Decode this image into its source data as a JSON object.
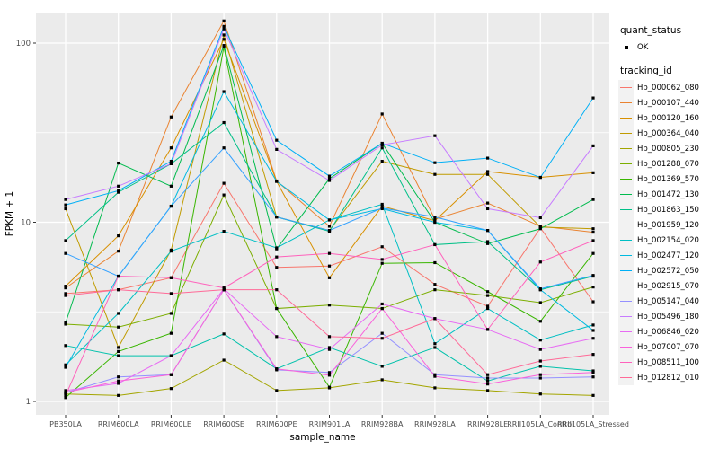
{
  "chart_data": {
    "type": "line",
    "title": "",
    "xlabel": "sample_name",
    "ylabel": "FPKM + 1",
    "y_scale": "log10",
    "y_ticks": [
      1,
      10,
      100
    ],
    "y_minor_ticks": [
      3.162,
      31.62
    ],
    "ylim": [
      0.85,
      160
    ],
    "grid": "on",
    "panel_bg": "#EBEBEB",
    "grid_color": "#FFFFFF",
    "point_color": "#000000",
    "legend_position": "right",
    "categories": [
      "PB350LA",
      "RRIM600LA",
      "RRIM600LE",
      "RRIM600SE",
      "RRIM600PE",
      "RRIM901LA",
      "RRIM928BA",
      "RRIM928LA",
      "RRIM928LE",
      "RRII105LA_Control",
      "RRII105LA_Stressed"
    ],
    "series": [
      {
        "name": "Hb_000062_080",
        "color": "#F8766D",
        "values": [
          4.0,
          4.2,
          4.9,
          16.5,
          5.6,
          5.7,
          7.3,
          4.5,
          3.4,
          9.3,
          3.6
        ]
      },
      {
        "name": "Hb_000107_440",
        "color": "#EA8331",
        "values": [
          4.3,
          6.9,
          38.7,
          133,
          17.0,
          9.5,
          40.2,
          10.4,
          12.8,
          9.5,
          8.8
        ]
      },
      {
        "name": "Hb_000120_160",
        "color": "#D89000",
        "values": [
          4.4,
          8.4,
          26.0,
          105,
          16.9,
          4.9,
          12.3,
          10.2,
          19.2,
          17.8,
          18.9
        ]
      },
      {
        "name": "Hb_000364_040",
        "color": "#C09B00",
        "values": [
          11.9,
          2.0,
          7.0,
          111,
          10.7,
          9.0,
          21.9,
          18.5,
          18.5,
          9.4,
          9.2
        ]
      },
      {
        "name": "Hb_000805_230",
        "color": "#A3A500",
        "values": [
          1.1,
          1.08,
          1.18,
          1.7,
          1.15,
          1.19,
          1.32,
          1.19,
          1.15,
          1.1,
          1.08
        ]
      },
      {
        "name": "Hb_001288_070",
        "color": "#7CAE00",
        "values": [
          2.7,
          2.6,
          3.1,
          14.2,
          3.3,
          3.45,
          3.3,
          4.2,
          3.9,
          3.56,
          4.35
        ]
      },
      {
        "name": "Hb_001369_570",
        "color": "#39B600",
        "values": [
          1.05,
          1.9,
          2.4,
          95,
          3.3,
          1.2,
          5.9,
          5.95,
          4.1,
          2.8,
          6.7
        ]
      },
      {
        "name": "Hb_001472_130",
        "color": "#00BB4E",
        "values": [
          2.75,
          21.4,
          15.9,
          97,
          7.1,
          17.5,
          27.6,
          10.0,
          7.6,
          9.2,
          13.4
        ]
      },
      {
        "name": "Hb_001863_150",
        "color": "#00C087",
        "values": [
          7.9,
          14.7,
          21.2,
          36,
          10.7,
          8.9,
          26.0,
          7.5,
          7.8,
          4.2,
          5.0
        ]
      },
      {
        "name": "Hb_001959_120",
        "color": "#00C1AB",
        "values": [
          2.05,
          1.8,
          1.8,
          2.38,
          1.52,
          2.0,
          1.57,
          2.0,
          1.3,
          1.57,
          1.48
        ]
      },
      {
        "name": "Hb_002154_020",
        "color": "#00BFC4",
        "values": [
          1.6,
          3.1,
          6.9,
          8.9,
          7.2,
          10.3,
          12.6,
          2.1,
          3.3,
          2.2,
          2.67
        ]
      },
      {
        "name": "Hb_002477_120",
        "color": "#00BAE0",
        "values": [
          1.55,
          5.0,
          12.3,
          53.6,
          16.9,
          10.3,
          11.9,
          10.0,
          9.0,
          4.2,
          2.49
        ]
      },
      {
        "name": "Hb_002572_050",
        "color": "#00B0F6",
        "values": [
          12.5,
          15.0,
          21.9,
          124,
          28.7,
          18.1,
          27.6,
          21.5,
          22.8,
          17.8,
          49.4
        ]
      },
      {
        "name": "Hb_002915_070",
        "color": "#35A2FF",
        "values": [
          6.7,
          5.0,
          12.3,
          26.0,
          10.7,
          9.0,
          12.0,
          10.7,
          9.0,
          4.25,
          5.05
        ]
      },
      {
        "name": "Hb_005147_040",
        "color": "#9590FF",
        "values": [
          1.12,
          1.37,
          1.41,
          4.2,
          1.5,
          1.45,
          2.4,
          1.41,
          1.35,
          1.35,
          1.37
        ]
      },
      {
        "name": "Hb_005496_180",
        "color": "#C77CFF",
        "values": [
          13.4,
          15.9,
          21.2,
          120,
          25.5,
          17.1,
          27.0,
          30.4,
          11.9,
          10.6,
          26.7
        ]
      },
      {
        "name": "Hb_006846_020",
        "color": "#E76BF3",
        "values": [
          1.15,
          1.26,
          1.8,
          4.25,
          2.3,
          1.95,
          3.5,
          2.9,
          2.52,
          1.95,
          2.25
        ]
      },
      {
        "name": "Hb_007007_070",
        "color": "#FA62DB",
        "values": [
          1.12,
          1.3,
          1.41,
          4.2,
          1.52,
          1.4,
          3.3,
          1.38,
          1.25,
          1.41,
          1.45
        ]
      },
      {
        "name": "Hb_008511_100",
        "color": "#FF62BC",
        "values": [
          1.08,
          5.0,
          4.9,
          4.3,
          6.4,
          6.7,
          6.2,
          7.5,
          2.52,
          6.0,
          7.9
        ]
      },
      {
        "name": "Hb_012812_010",
        "color": "#FF6A98",
        "values": [
          3.9,
          4.2,
          4.0,
          4.2,
          4.2,
          2.3,
          2.25,
          2.9,
          1.41,
          1.68,
          1.83
        ]
      }
    ]
  },
  "legend": {
    "quant_status_title": "quant_status",
    "quant_status_items": [
      {
        "label": "OK"
      }
    ],
    "tracking_id_title": "tracking_id"
  }
}
